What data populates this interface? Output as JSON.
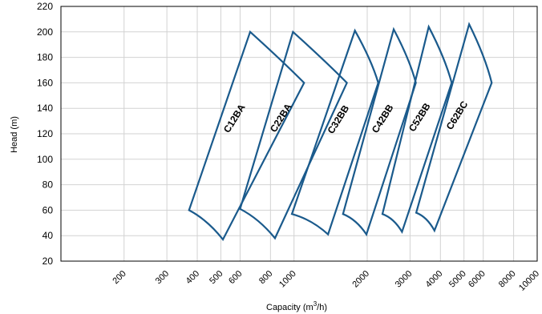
{
  "chart_data": {
    "type": "line",
    "subtype": "pump-performance-envelopes",
    "x_scale": "log",
    "xlabel_main": "Capacity (m",
    "xlabel_sup": "3",
    "xlabel_tail": "/h)",
    "ylabel": "Head (m)",
    "xlim": [
      110,
      10000
    ],
    "ylim": [
      20,
      220
    ],
    "x_ticks": [
      200,
      300,
      400,
      500,
      600,
      800,
      1000,
      2000,
      3000,
      4000,
      5000,
      6000,
      8000,
      10000
    ],
    "y_ticks": [
      20,
      40,
      60,
      80,
      100,
      120,
      140,
      160,
      180,
      200,
      220
    ],
    "gridlines": true,
    "line_color": "#1a5a8c",
    "series": [
      {
        "name": "C12BA",
        "points": [
          [
            370,
            60
          ],
          [
            510,
            37
          ],
          [
            1100,
            160
          ],
          [
            660,
            200
          ],
          [
            370,
            60
          ]
        ]
      },
      {
        "name": "C22BA",
        "points": [
          [
            600,
            61
          ],
          [
            835,
            38
          ],
          [
            1650,
            160
          ],
          [
            990,
            200
          ],
          [
            600,
            61
          ]
        ]
      },
      {
        "name": "C32BB",
        "points": [
          [
            980,
            57
          ],
          [
            1380,
            41
          ],
          [
            2220,
            160
          ],
          [
            1780,
            201
          ],
          [
            980,
            57
          ]
        ]
      },
      {
        "name": "C42BB",
        "points": [
          [
            1590,
            57
          ],
          [
            1985,
            41
          ],
          [
            3170,
            160
          ],
          [
            2570,
            202
          ],
          [
            1590,
            57
          ]
        ]
      },
      {
        "name": "C52BB",
        "points": [
          [
            2310,
            57
          ],
          [
            2780,
            43
          ],
          [
            4450,
            160
          ],
          [
            3580,
            204
          ],
          [
            2310,
            57
          ]
        ]
      },
      {
        "name": "C62BC",
        "points": [
          [
            3180,
            58
          ],
          [
            3780,
            44
          ],
          [
            6500,
            160
          ],
          [
            5250,
            206
          ],
          [
            3180,
            58
          ]
        ]
      }
    ]
  }
}
